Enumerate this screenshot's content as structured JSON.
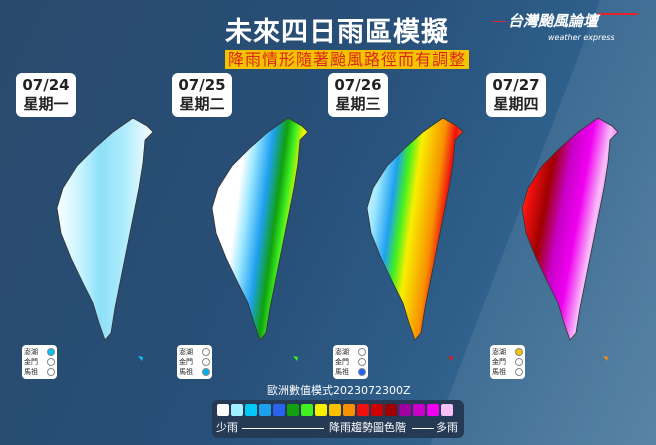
{
  "header": {
    "title": "未來四日雨區模擬",
    "subtitle": "降雨情形隨著颱風路徑而有調整"
  },
  "logo": {
    "name": "台灣颱風論壇",
    "tagline": "weather express"
  },
  "days": [
    {
      "date": "07/24",
      "weekday": "星期一",
      "islands": [
        {
          "name": "澎湖",
          "color": "#00c0f0"
        },
        {
          "name": "金門",
          "color": "#ffffff"
        },
        {
          "name": "馬祖",
          "color": "#ffffff"
        }
      ]
    },
    {
      "date": "07/25",
      "weekday": "星期二",
      "islands": [
        {
          "name": "澎湖",
          "color": "#ffffff"
        },
        {
          "name": "金門",
          "color": "#ffffff"
        },
        {
          "name": "馬祖",
          "color": "#00b0f0"
        }
      ]
    },
    {
      "date": "07/26",
      "weekday": "星期三",
      "islands": [
        {
          "name": "澎湖",
          "color": "#ffffff"
        },
        {
          "name": "金門",
          "color": "#ffffff"
        },
        {
          "name": "馬祖",
          "color": "#2060ff"
        }
      ]
    },
    {
      "date": "07/27",
      "weekday": "星期四",
      "islands": [
        {
          "name": "澎湖",
          "color": "#f5c400"
        },
        {
          "name": "金門",
          "color": "#ffffff"
        },
        {
          "name": "馬祖",
          "color": "#ffffff"
        }
      ]
    }
  ],
  "legend": {
    "model": "歐洲數值模式2023072300Z",
    "low": "少雨",
    "high": "多雨",
    "label": "降雨趨勢圖色階",
    "colors": [
      "#ffffff",
      "#a0f0ff",
      "#00c8f8",
      "#1ea0f0",
      "#2864f0",
      "#10a010",
      "#40f020",
      "#f8f000",
      "#f8c000",
      "#f89000",
      "#f01010",
      "#d00000",
      "#a00000",
      "#a000a0",
      "#c800c8",
      "#f000f0",
      "#f8c0f8"
    ]
  }
}
